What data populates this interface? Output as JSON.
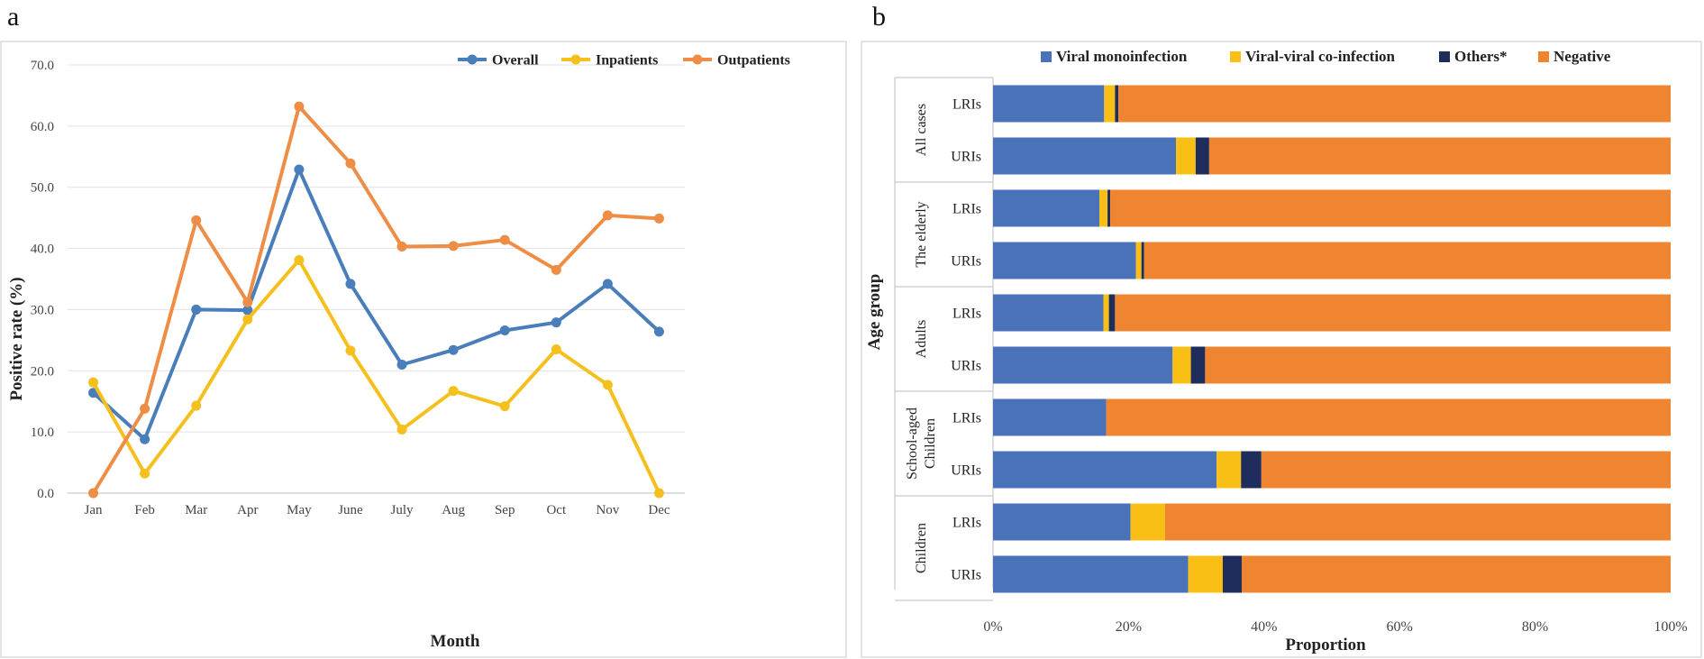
{
  "panel_labels": {
    "a": "a",
    "b": "b"
  },
  "chart_data": [
    {
      "type": "line",
      "panel": "a",
      "title": "",
      "xlabel": "Month",
      "ylabel": "Positive  rate (%)",
      "categories": [
        "Jan",
        "Feb",
        "Mar",
        "Apr",
        "May",
        "June",
        "July",
        "Aug",
        "Sep",
        "Oct",
        "Nov",
        "Dec"
      ],
      "ylim": [
        0,
        70
      ],
      "yticks": [
        0,
        10,
        20,
        30,
        40,
        50,
        60,
        70
      ],
      "ytick_labels": [
        "0.0",
        "10.0",
        "20.0",
        "30.0",
        "40.0",
        "50.0",
        "60.0",
        "70.0"
      ],
      "grid": true,
      "legend_position": "top-right",
      "series": [
        {
          "name": "Overall",
          "color": "#4A7EBB",
          "values": [
            16.4,
            8.8,
            30.0,
            29.9,
            52.9,
            34.2,
            21.0,
            23.4,
            26.6,
            27.9,
            34.2,
            26.4
          ]
        },
        {
          "name": "Inpatients",
          "color": "#F5C01E",
          "values": [
            18.1,
            3.2,
            14.3,
            28.4,
            38.1,
            23.3,
            10.4,
            16.7,
            14.2,
            23.5,
            17.7,
            0.0
          ]
        },
        {
          "name": "Outpatients",
          "color": "#EE8D45",
          "values": [
            0.0,
            13.8,
            44.6,
            31.2,
            63.2,
            53.9,
            40.3,
            40.4,
            41.4,
            36.5,
            45.4,
            44.9
          ]
        }
      ]
    },
    {
      "type": "bar",
      "orientation": "horizontal",
      "stacked": "percent",
      "panel": "b",
      "title": "",
      "xlabel": "Proportion",
      "ylabel": "Age group",
      "xlim": [
        0,
        100
      ],
      "xticks": [
        0,
        20,
        40,
        60,
        80,
        100
      ],
      "xtick_labels": [
        "0%",
        "20%",
        "40%",
        "60%",
        "80%",
        "100%"
      ],
      "legend_position": "top",
      "segments": [
        {
          "name": "Viral monoinfection",
          "color": "#4A72B8"
        },
        {
          "name": "Viral-viral co-infection",
          "color": "#F9BF14"
        },
        {
          "name": "Others*",
          "color": "#1F2D5C"
        },
        {
          "name": "Negative",
          "color": "#EF8431"
        }
      ],
      "groups": [
        {
          "name": "All cases",
          "rows": [
            {
              "label": "LRIs",
              "values": [
                16.4,
                1.6,
                0.5,
                81.5
              ]
            },
            {
              "label": "URIs",
              "values": [
                27.0,
                2.9,
                2.0,
                68.1
              ]
            }
          ]
        },
        {
          "name": "The elderly",
          "rows": [
            {
              "label": "LRIs",
              "values": [
                15.7,
                1.2,
                0.4,
                82.7
              ]
            },
            {
              "label": "URIs",
              "values": [
                21.1,
                0.8,
                0.4,
                77.7
              ]
            }
          ]
        },
        {
          "name": "Adults",
          "rows": [
            {
              "label": "LRIs",
              "values": [
                16.3,
                0.8,
                0.9,
                82.0
              ]
            },
            {
              "label": "URIs",
              "values": [
                26.5,
                2.7,
                2.1,
                68.7
              ]
            }
          ]
        },
        {
          "name": "School-aged Children",
          "rows": [
            {
              "label": "LRIs",
              "values": [
                16.7,
                0.0,
                0.0,
                83.3
              ]
            },
            {
              "label": "URIs",
              "values": [
                33.0,
                3.6,
                3.0,
                60.4
              ]
            }
          ]
        },
        {
          "name": "Children",
          "rows": [
            {
              "label": "LRIs",
              "values": [
                20.3,
                5.1,
                0.0,
                74.6
              ]
            },
            {
              "label": "URIs",
              "values": [
                28.8,
                5.1,
                2.8,
                63.3
              ]
            }
          ]
        }
      ]
    }
  ]
}
